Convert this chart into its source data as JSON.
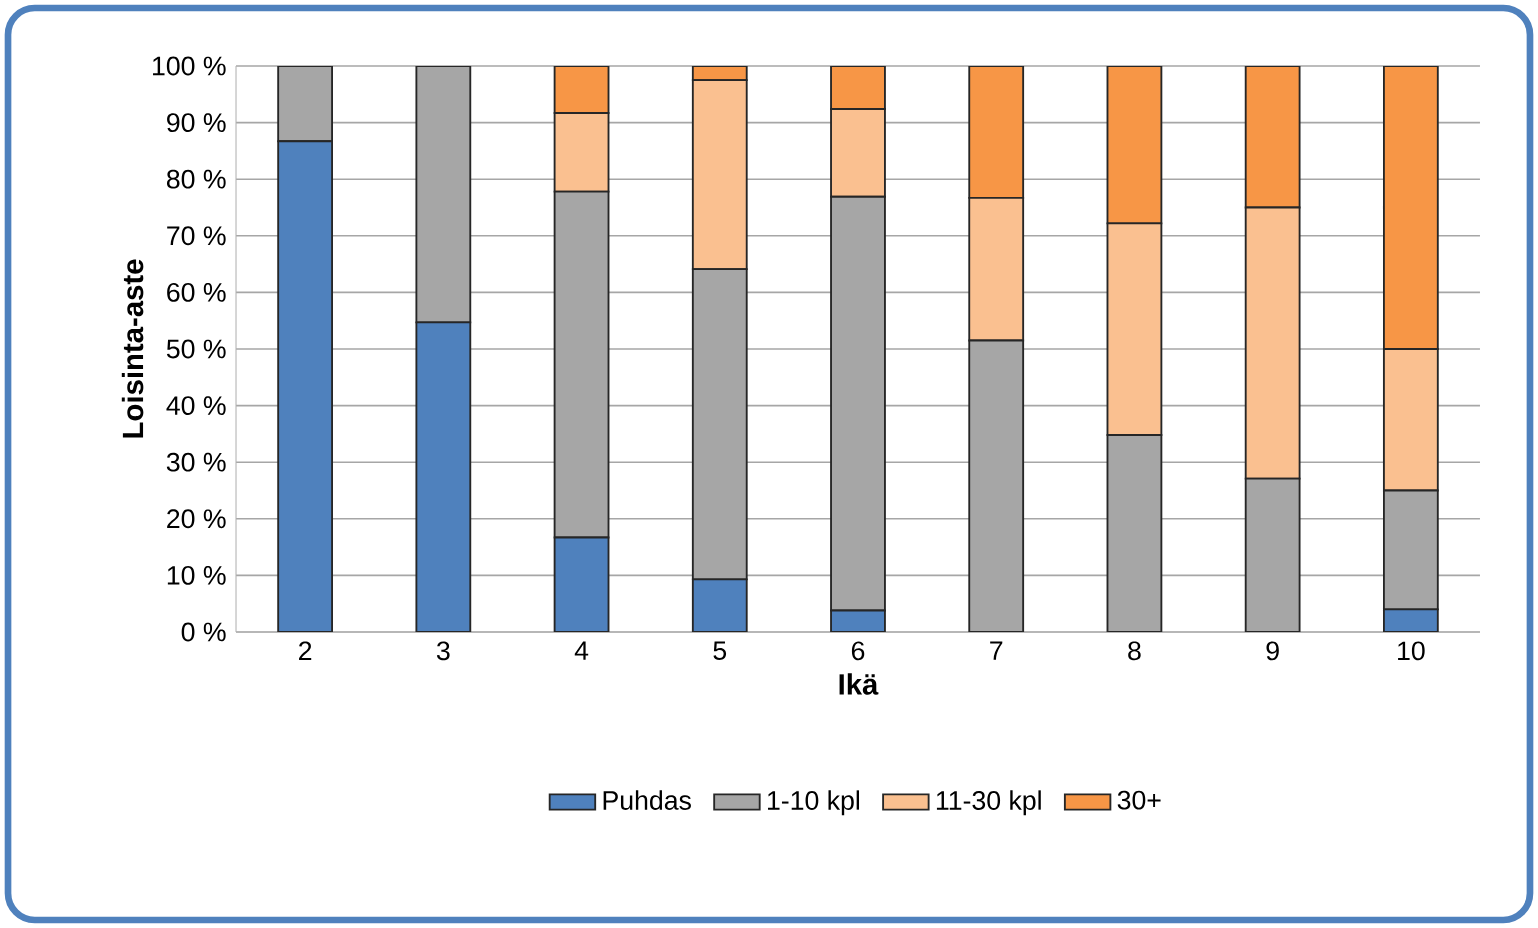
{
  "chart_data": {
    "type": "bar",
    "stacked": true,
    "xlabel": "Ikä",
    "ylabel": "Loisinta-aste",
    "categories": [
      "2",
      "3",
      "4",
      "5",
      "6",
      "7",
      "8",
      "9",
      "10"
    ],
    "series": [
      {
        "name": "Puhdas",
        "color": "#4f81bd",
        "values": [
          86.7,
          54.7,
          16.7,
          9.3,
          3.8,
          0,
          0,
          0,
          4
        ]
      },
      {
        "name": "1-10 kpl",
        "color": "#a6a6a6",
        "values": [
          13.3,
          45.3,
          61.1,
          54.8,
          73.1,
          51.5,
          34.8,
          27.1,
          21
        ]
      },
      {
        "name": "11-30 kpl",
        "color": "#fac090",
        "values": [
          0,
          0,
          13.9,
          33.4,
          15.5,
          25.2,
          37.4,
          47.9,
          25
        ]
      },
      {
        "name": "30+",
        "color": "#f79646",
        "values": [
          0,
          0,
          8.3,
          2.5,
          7.6,
          23.3,
          27.8,
          25.0,
          50
        ]
      }
    ],
    "ylim": [
      0,
      100
    ],
    "yticks": [
      {
        "value": 0,
        "label": "0 %"
      },
      {
        "value": 10,
        "label": "10 %"
      },
      {
        "value": 20,
        "label": "20 %"
      },
      {
        "value": 30,
        "label": "30 %"
      },
      {
        "value": 40,
        "label": "40 %"
      },
      {
        "value": 50,
        "label": "50 %"
      },
      {
        "value": 60,
        "label": "60 %"
      },
      {
        "value": 70,
        "label": "70 %"
      },
      {
        "value": 80,
        "label": "80 %"
      },
      {
        "value": 90,
        "label": "90 %"
      },
      {
        "value": 100,
        "label": "100 %"
      }
    ],
    "grid": "y",
    "legend": "bottom"
  }
}
